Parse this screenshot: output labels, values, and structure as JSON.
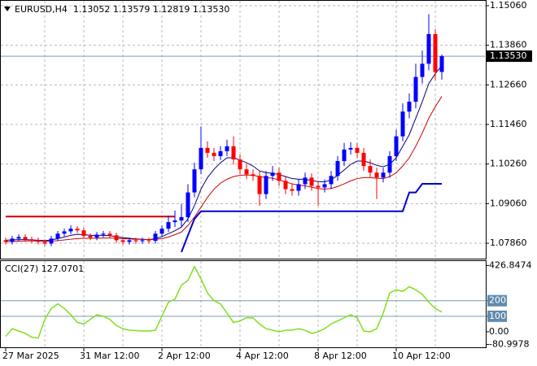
{
  "chart_data": [
    {
      "type": "candlestick",
      "title": "EURUSD,H4  1.13052 1.13579 1.12819 1.13530",
      "categories": [
        "27 Mar 2025",
        null,
        null,
        null,
        null,
        null,
        null,
        null,
        null,
        null,
        null,
        null,
        "31 Mar 12:00",
        null,
        null,
        null,
        null,
        null,
        null,
        null,
        null,
        null,
        null,
        null,
        "2 Apr 12:00",
        null,
        null,
        null,
        null,
        null,
        null,
        null,
        null,
        null,
        null,
        null,
        "4 Apr 12:00",
        null,
        null,
        null,
        null,
        null,
        null,
        null,
        null,
        null,
        null,
        null,
        "8 Apr 12:00",
        null,
        null,
        null,
        null,
        null,
        null,
        null,
        null,
        null,
        null,
        null,
        "10 Apr 12:00",
        null,
        null,
        null,
        null,
        null,
        null,
        null
      ],
      "open": [
        1.0795,
        1.079,
        1.08,
        1.0805,
        1.0798,
        1.0795,
        1.079,
        1.0785,
        1.08,
        1.0815,
        1.0822,
        1.083,
        1.0825,
        1.0808,
        1.0803,
        1.0812,
        1.0815,
        1.081,
        1.0795,
        1.079,
        1.0795,
        1.0792,
        1.0795,
        1.0793,
        1.0815,
        1.083,
        1.085,
        1.0855,
        1.0865,
        1.094,
        1.101,
        1.1075,
        1.106,
        1.105,
        1.1065,
        1.108,
        1.104,
        1.101,
        1.0995,
        1.099,
        1.0935,
        1.099,
        1.1,
        1.0975,
        1.095,
        1.0945,
        1.0965,
        1.0985,
        1.096,
        1.0955,
        1.0965,
        1.099,
        1.1035,
        1.107,
        1.1075,
        1.106,
        1.102,
        1.1,
        1.0985,
        1.1,
        1.105,
        1.111,
        1.1185,
        1.1215,
        1.129,
        1.133,
        1.142,
        1.13052
      ],
      "high": [
        1.0803,
        1.0808,
        1.0813,
        1.0813,
        1.0806,
        1.0803,
        1.0798,
        1.0808,
        1.0823,
        1.083,
        1.084,
        1.0838,
        1.0833,
        1.0816,
        1.082,
        1.0823,
        1.0823,
        1.0818,
        1.0803,
        1.0803,
        1.0803,
        1.0803,
        1.0803,
        1.0823,
        1.084,
        1.087,
        1.0885,
        1.0905,
        1.0965,
        1.103,
        1.114,
        1.1095,
        1.1075,
        1.108,
        1.11,
        1.111,
        1.1055,
        1.1025,
        1.101,
        1.1005,
        1.1005,
        1.102,
        1.1015,
        1.099,
        1.0965,
        1.098,
        1.1,
        1.0998,
        1.0975,
        1.098,
        1.1005,
        1.105,
        1.109,
        1.1092,
        1.109,
        1.1075,
        1.104,
        1.1015,
        1.1015,
        1.1065,
        1.113,
        1.121,
        1.124,
        1.133,
        1.137,
        1.148,
        1.1435,
        1.13579
      ],
      "low": [
        1.0782,
        1.0782,
        1.0792,
        1.079,
        1.0787,
        1.0782,
        1.0777,
        1.0777,
        1.0792,
        1.0807,
        1.0814,
        1.0817,
        1.08,
        1.0795,
        1.0795,
        1.0804,
        1.0802,
        1.0787,
        1.0782,
        1.0782,
        1.0784,
        1.0784,
        1.0785,
        1.0785,
        1.0807,
        1.082,
        1.0835,
        1.0835,
        1.085,
        1.0925,
        1.0995,
        1.1045,
        1.1035,
        1.1038,
        1.105,
        1.1025,
        1.0995,
        1.098,
        1.0975,
        1.09,
        1.092,
        1.0975,
        1.096,
        1.0935,
        1.093,
        1.093,
        1.095,
        1.0945,
        1.09,
        1.094,
        1.095,
        1.0975,
        1.102,
        1.1055,
        1.1045,
        1.1005,
        1.0985,
        1.092,
        1.097,
        1.0985,
        1.1035,
        1.1095,
        1.1165,
        1.1195,
        1.127,
        1.131,
        1.128,
        1.12819
      ],
      "close": [
        1.079,
        1.08,
        1.0805,
        1.0798,
        1.0795,
        1.079,
        1.0785,
        1.08,
        1.0815,
        1.0822,
        1.083,
        1.0825,
        1.0808,
        1.0803,
        1.0812,
        1.0815,
        1.081,
        1.0795,
        1.079,
        1.0795,
        1.0792,
        1.0795,
        1.0793,
        1.0815,
        1.083,
        1.085,
        1.0855,
        1.0865,
        1.094,
        1.101,
        1.1075,
        1.106,
        1.105,
        1.1065,
        1.108,
        1.104,
        1.101,
        1.0995,
        1.099,
        1.0935,
        1.099,
        1.1,
        1.0975,
        1.095,
        1.0945,
        1.0965,
        1.0985,
        1.096,
        1.0955,
        1.0965,
        1.099,
        1.1035,
        1.107,
        1.1075,
        1.106,
        1.102,
        1.1,
        1.0985,
        1.1,
        1.105,
        1.111,
        1.1185,
        1.1215,
        1.129,
        1.133,
        1.142,
        1.1305,
        1.1353
      ],
      "up_color": "#0000ff",
      "down_color": "#ff0000",
      "series": [
        {
          "color": "#00007f",
          "width": 1,
          "values": [
            1.0795,
            1.0796,
            1.0797,
            1.0797,
            1.0796,
            1.0795,
            1.0794,
            1.0796,
            1.08,
            1.0805,
            1.081,
            1.0813,
            1.0812,
            1.081,
            1.081,
            1.081,
            1.0809,
            1.0806,
            1.0803,
            1.0801,
            1.0799,
            1.0798,
            1.0797,
            1.08,
            1.0806,
            1.0815,
            1.0824,
            1.0835,
            1.086,
            1.09,
            1.095,
            1.0985,
            1.101,
            1.103,
            1.1045,
            1.1045,
            1.1038,
            1.103,
            1.102,
            1.1005,
            1.1,
            1.0998,
            1.0994,
            1.0988,
            1.0982,
            1.098,
            1.098,
            1.0976,
            1.0973,
            1.0972,
            1.0978,
            1.0992,
            1.1008,
            1.1025,
            1.1035,
            1.1035,
            1.103,
            1.1022,
            1.1018,
            1.1025,
            1.1045,
            1.108,
            1.1115,
            1.1165,
            1.1215,
            1.127,
            1.13,
            1.1324
          ]
        },
        {
          "color": "#cc0000",
          "width": 1,
          "values": [
            1.079,
            1.0791,
            1.0792,
            1.0793,
            1.0793,
            1.0793,
            1.0792,
            1.0792,
            1.0794,
            1.0796,
            1.0798,
            1.08,
            1.0801,
            1.0801,
            1.0801,
            1.0802,
            1.0802,
            1.0801,
            1.08,
            1.0799,
            1.0798,
            1.0798,
            1.0797,
            1.0798,
            1.08,
            1.0805,
            1.0812,
            1.082,
            1.084,
            1.0865,
            1.0895,
            1.0925,
            1.095,
            1.0968,
            1.098,
            1.0988,
            1.0992,
            1.0993,
            1.0992,
            1.0988,
            1.0985,
            1.0983,
            1.0978,
            1.0972,
            1.0966,
            1.0962,
            1.096,
            1.0956,
            1.0952,
            1.095,
            1.0952,
            1.0958,
            1.0966,
            1.0975,
            1.0982,
            1.0985,
            1.0985,
            1.0983,
            1.0982,
            1.0988,
            1.1,
            1.102,
            1.1045,
            1.108,
            1.112,
            1.1165,
            1.12,
            1.1231
          ]
        },
        {
          "color": "#0000cc",
          "width": 2,
          "values": [
            null,
            null,
            null,
            null,
            null,
            null,
            null,
            null,
            null,
            null,
            null,
            null,
            null,
            null,
            null,
            null,
            null,
            null,
            null,
            null,
            null,
            null,
            null,
            null,
            null,
            null,
            null,
            1.0759,
            1.081,
            1.086,
            1.0883,
            1.0883,
            1.0883,
            1.0883,
            1.0883,
            1.0883,
            1.0883,
            1.0883,
            1.0883,
            1.0883,
            1.0883,
            1.0883,
            1.0883,
            1.0883,
            1.0883,
            1.0883,
            1.0883,
            1.0883,
            1.0883,
            1.0883,
            1.0883,
            1.0883,
            1.0883,
            1.0883,
            1.0883,
            1.0883,
            1.0883,
            1.0883,
            1.0883,
            1.0883,
            1.0883,
            1.0883,
            1.094,
            1.094,
            1.0966,
            1.0966,
            1.0966,
            1.0966
          ]
        },
        {
          "color": "#cc0000",
          "width": 2,
          "values": [
            1.0867,
            1.0867,
            1.0867,
            1.0867,
            1.0867,
            1.0867,
            1.0867,
            1.0867,
            1.0867,
            1.0867,
            1.0867,
            1.0867,
            1.0867,
            1.0867,
            1.0867,
            1.0867,
            1.0867,
            1.0867,
            1.0867,
            1.0867,
            1.0867,
            1.0867,
            1.0867,
            1.0867,
            1.0867,
            1.0867,
            1.0867,
            null,
            null,
            null,
            null,
            null,
            null,
            null,
            null,
            null,
            null,
            null,
            null,
            null,
            null,
            null,
            null,
            null,
            null,
            null,
            null,
            null,
            null,
            null,
            null,
            null,
            null,
            null,
            null,
            null,
            null,
            null,
            null,
            null,
            null,
            null,
            null,
            null,
            null,
            null,
            null,
            null
          ]
        }
      ],
      "current_price": {
        "value": 1.1353,
        "label": "1.13530"
      },
      "ylim": [
        1.07393,
        1.15208
      ],
      "yticks": [
        {
          "value": 1.0786,
          "label": "1.07860"
        },
        {
          "value": 1.0906,
          "label": "1.09060"
        },
        {
          "value": 1.1026,
          "label": "1.10260"
        },
        {
          "value": 1.1146,
          "label": "1.11460"
        },
        {
          "value": 1.1266,
          "label": "1.12660"
        },
        {
          "value": 1.1386,
          "label": "1.13860"
        },
        {
          "value": 1.1506,
          "label": "1.15060"
        }
      ],
      "grid": true
    },
    {
      "type": "line",
      "title": "CCI(27) 127.0701",
      "series": [
        {
          "color": "#7fe01a",
          "values": [
            -30,
            20,
            5,
            -10,
            -35,
            -40,
            80,
            150,
            180,
            150,
            110,
            60,
            50,
            80,
            110,
            100,
            80,
            40,
            20,
            10,
            8,
            5,
            5,
            10,
            100,
            190,
            210,
            300,
            330,
            420,
            340,
            250,
            200,
            180,
            120,
            60,
            70,
            90,
            90,
            50,
            20,
            10,
            0,
            10,
            10,
            20,
            10,
            -10,
            0,
            20,
            50,
            70,
            90,
            110,
            90,
            5,
            0,
            20,
            120,
            250,
            270,
            260,
            290,
            270,
            240,
            190,
            150,
            127.0701
          ]
        }
      ],
      "levels": [
        200,
        100
      ],
      "level_color": "#5f8cae",
      "ylim": [
        -105,
        455
      ],
      "yticks": [
        {
          "value": 426.8474,
          "label": "426.8474"
        },
        200,
        100,
        {
          "value": 0,
          "label": "0.00"
        },
        {
          "value": -80.9978,
          "label": "-80.9978"
        }
      ]
    }
  ]
}
